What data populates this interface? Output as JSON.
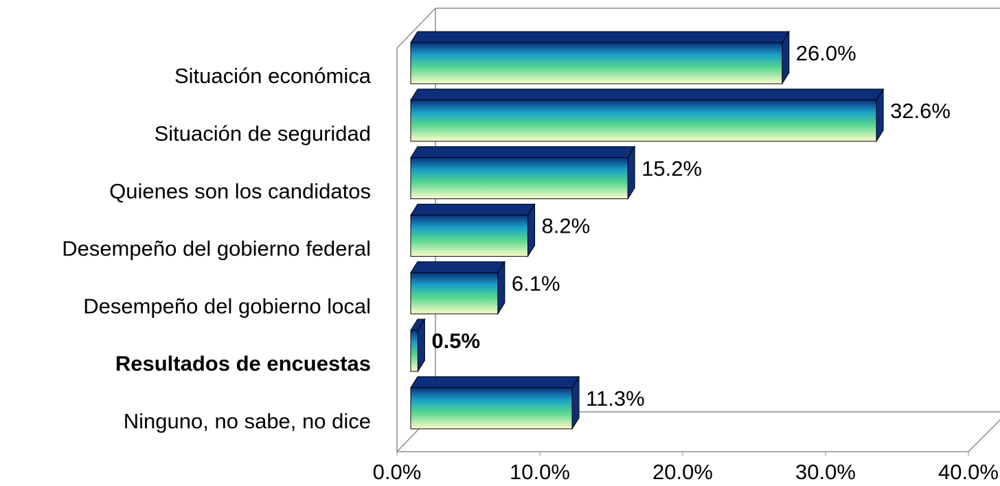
{
  "chart_data": {
    "type": "bar",
    "orientation": "horizontal",
    "categories": [
      "Situación económica",
      "Situación de seguridad",
      "Quienes son los candidatos",
      "Desempeño del gobierno federal",
      "Desempeño del gobierno local",
      "Resultados de encuestas",
      "Ninguno, no sabe, no dice"
    ],
    "values": [
      26.0,
      32.6,
      15.2,
      8.2,
      6.1,
      0.5,
      11.3
    ],
    "value_labels": [
      "26.0%",
      "32.6%",
      "15.2%",
      "8.2%",
      "6.1%",
      "0.5%",
      "11.3%"
    ],
    "highlight_index": 5,
    "xlim": [
      0,
      40
    ],
    "xticks": [
      {
        "value": 0,
        "label": "0.0%"
      },
      {
        "value": 10,
        "label": "10.0%"
      },
      {
        "value": 20,
        "label": "20.0%"
      },
      {
        "value": 30,
        "label": "30.0%"
      },
      {
        "value": 40,
        "label": "40.0%"
      }
    ],
    "colors": [
      "#0d2f7a",
      "#1aa0c8",
      "#54d690",
      "#fdfbc8"
    ]
  }
}
